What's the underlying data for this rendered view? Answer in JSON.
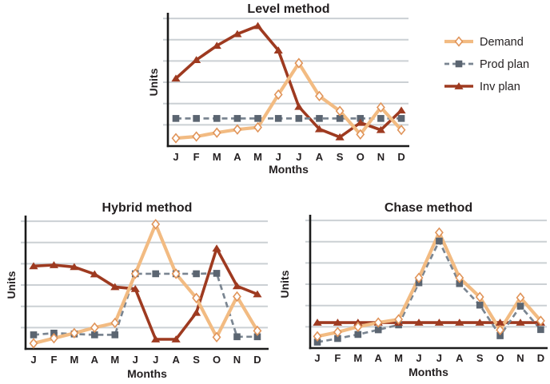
{
  "chart_data": {
    "type": "line",
    "figure_title": "",
    "x_categories": [
      "J",
      "F",
      "M",
      "A",
      "M",
      "J",
      "J",
      "A",
      "S",
      "O",
      "N",
      "D"
    ],
    "legend": {
      "position": "top-right",
      "entries": [
        {
          "label": "Demand",
          "marker": "diamond",
          "line_style": "solid"
        },
        {
          "label": "Prod plan",
          "marker": "square",
          "line_style": "dashed"
        },
        {
          "label": "Inv plan",
          "marker": "triangle",
          "line_style": "solid"
        }
      ]
    },
    "y_axis": {
      "label": "Units",
      "numeric_ticks_labeled": false,
      "gridlines": 6,
      "ylim": [
        0,
        6.3
      ],
      "units_per_gridline": 1
    },
    "x_axis": {
      "label": "Months"
    },
    "charts": [
      {
        "title": "Level method",
        "xlabel": "Months",
        "ylabel": "Units",
        "series": [
          {
            "name": "Demand",
            "key": "demand",
            "values": [
              0.37,
              0.45,
              0.63,
              0.78,
              0.88,
              2.42,
              3.9,
              2.35,
              1.65,
              0.55,
              1.82,
              0.76
            ]
          },
          {
            "name": "Prod plan",
            "key": "prod",
            "values": [
              1.3,
              1.3,
              1.3,
              1.3,
              1.3,
              1.3,
              1.3,
              1.3,
              1.3,
              1.3,
              1.3,
              1.3
            ]
          },
          {
            "name": "Inv plan",
            "key": "inv",
            "values": [
              3.18,
              4.05,
              4.72,
              5.27,
              5.65,
              4.5,
              1.85,
              0.8,
              0.42,
              1.1,
              0.76,
              1.68
            ]
          }
        ]
      },
      {
        "title": "Hybrid method",
        "xlabel": "Months",
        "ylabel": "Units",
        "series": [
          {
            "name": "Demand",
            "key": "demand",
            "values": [
              0.26,
              0.5,
              0.74,
              1.0,
              1.22,
              3.53,
              5.86,
              3.53,
              2.39,
              0.55,
              2.46,
              0.85
            ]
          },
          {
            "name": "Prod plan",
            "key": "prod",
            "values": [
              0.66,
              0.74,
              0.7,
              0.66,
              0.66,
              3.53,
              3.53,
              3.53,
              3.53,
              3.55,
              0.57,
              0.57
            ]
          },
          {
            "name": "Inv plan",
            "key": "inv",
            "values": [
              3.89,
              3.94,
              3.85,
              3.51,
              2.91,
              2.82,
              0.45,
              0.45,
              1.7,
              4.72,
              2.95,
              2.57
            ]
          }
        ]
      },
      {
        "title": "Chase method",
        "xlabel": "Months",
        "ylabel": "Units",
        "series": [
          {
            "name": "Demand",
            "key": "demand",
            "values": [
              0.55,
              0.75,
              1.0,
              1.2,
              1.35,
              3.3,
              5.43,
              3.3,
              2.4,
              0.85,
              2.37,
              1.28
            ]
          },
          {
            "name": "Prod plan",
            "key": "prod",
            "values": [
              0.28,
              0.45,
              0.64,
              0.86,
              1.09,
              3.07,
              5.03,
              3.03,
              2.02,
              0.58,
              1.97,
              0.87
            ]
          },
          {
            "name": "Inv plan",
            "key": "inv",
            "values": [
              1.2,
              1.2,
              1.2,
              1.2,
              1.2,
              1.2,
              1.2,
              1.2,
              1.2,
              1.2,
              1.2,
              1.2
            ]
          }
        ]
      }
    ]
  },
  "colors": {
    "demand_line": "#F2BB82",
    "demand_marker_fill": "#FFFFFF",
    "demand_marker_stroke": "#E0945A",
    "prod_line": "#7A8591",
    "prod_marker": "#5B6571",
    "inv_line": "#9E3A20",
    "gridline": "#CBD0D4",
    "axis": "#1B1B1B",
    "text": "#231F20",
    "background": "#FFFFFF"
  }
}
